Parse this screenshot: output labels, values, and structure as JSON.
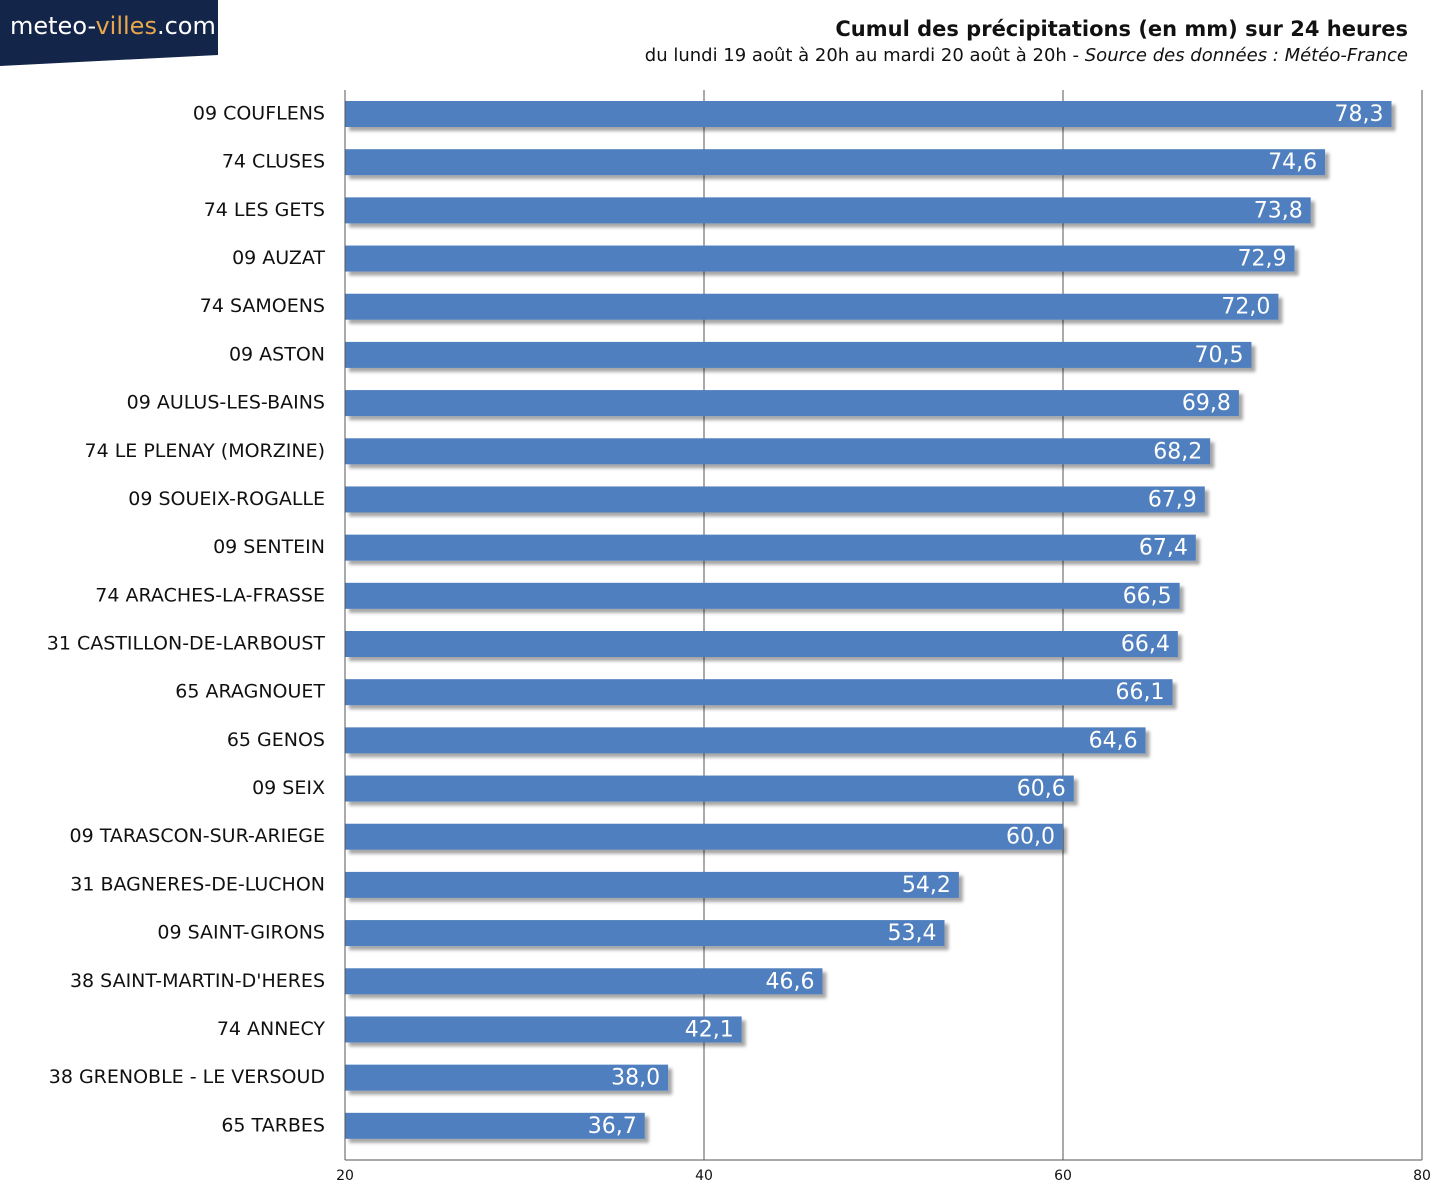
{
  "logo": [
    "meteo-",
    "villes",
    ".com"
  ],
  "chart_data": {
    "type": "hbar",
    "title": "Cumul des précipitations (en mm) sur 24 heures",
    "subtitle": "du lundi 19 août à 20h au mardi 20 août à 20h - ",
    "source": "Source des données : Météo-France",
    "categories": [
      "09 COUFLENS",
      "74 CLUSES",
      "74 LES GETS",
      "09 AUZAT",
      "74 SAMOENS",
      "09 ASTON",
      "09 AULUS-LES-BAINS",
      "74 LE PLENAY (MORZINE)",
      "09 SOUEIX-ROGALLE",
      "09 SENTEIN",
      "74 ARACHES-LA-FRASSE",
      "31 CASTILLON-DE-LARBOUST",
      "65 ARAGNOUET",
      "65 GENOS",
      "09 SEIX",
      "09 TARASCON-SUR-ARIEGE",
      "31 BAGNERES-DE-LUCHON",
      "09 SAINT-GIRONS",
      "38 SAINT-MARTIN-D'HERES",
      "74 ANNECY",
      "38 GRENOBLE - LE VERSOUD",
      "65 TARBES"
    ],
    "values": [
      78.3,
      74.6,
      73.8,
      72.9,
      72.0,
      70.5,
      69.8,
      68.2,
      67.9,
      67.4,
      66.5,
      66.4,
      66.1,
      64.6,
      60.6,
      60.0,
      54.2,
      53.4,
      46.6,
      42.1,
      38.0,
      36.7
    ],
    "value_labels": [
      "78,3",
      "74,6",
      "73,8",
      "72,9",
      "72,0",
      "70,5",
      "69,8",
      "68,2",
      "67,9",
      "67,4",
      "66,5",
      "66,4",
      "66,1",
      "64,6",
      "60,6",
      "60,0",
      "54,2",
      "53,4",
      "46,6",
      "42,1",
      "38,0",
      "36,7"
    ],
    "color": "#4f7fbf",
    "xlim": [
      20,
      80
    ],
    "xticks": [
      20,
      40,
      60,
      80
    ],
    "grid": true
  }
}
